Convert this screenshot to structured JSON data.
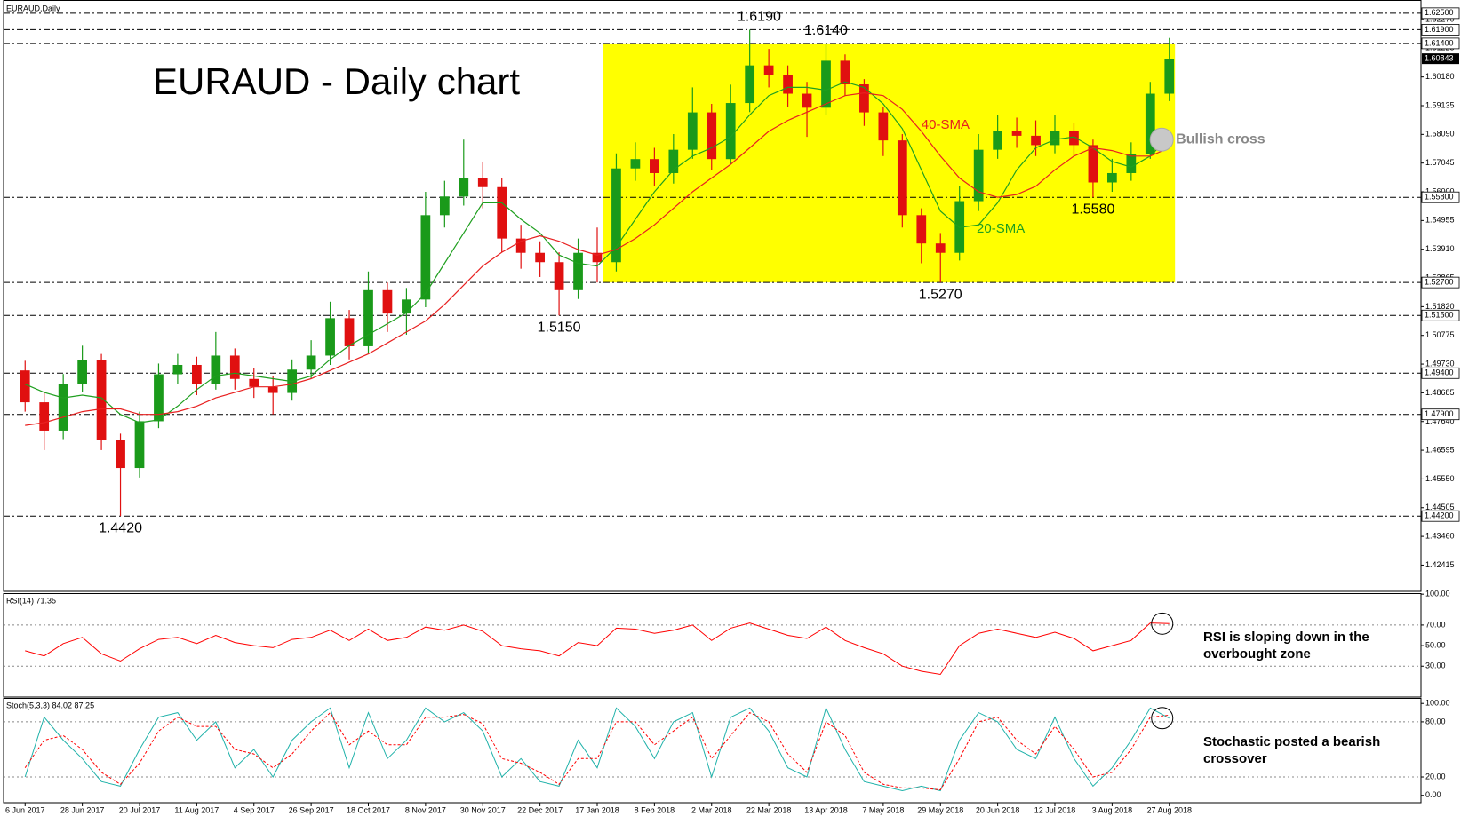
{
  "chart_data": [
    {
      "type": "candlestick",
      "symbol_label": "EURAUD,Daily",
      "title": "EURAUD - Daily chart",
      "x": [
        0,
        1,
        2,
        3,
        4,
        5,
        6,
        7,
        8,
        9,
        10,
        11,
        12,
        13,
        14,
        15,
        16,
        17,
        18,
        19,
        20,
        21,
        22,
        23,
        24,
        25,
        26,
        27,
        28,
        29,
        30,
        31,
        32,
        33,
        34,
        35,
        36,
        37,
        38,
        39,
        40,
        41,
        42,
        43,
        44,
        45,
        46,
        47,
        48,
        49,
        50,
        51,
        52,
        53,
        54,
        55,
        56,
        57,
        58,
        59,
        60
      ],
      "open": [
        1.495,
        1.4834,
        1.4731,
        1.4902,
        1.4987,
        1.4697,
        1.4595,
        1.4765,
        1.4936,
        1.497,
        1.4902,
        1.5004,
        1.4919,
        1.489,
        1.4868,
        1.4953,
        1.5004,
        1.514,
        1.5038,
        1.5242,
        1.5157,
        1.5208,
        1.5515,
        1.5583,
        1.5651,
        1.5617,
        1.543,
        1.5378,
        1.5344,
        1.5242,
        1.5378,
        1.5344,
        1.5685,
        1.5719,
        1.5668,
        1.5753,
        1.5889,
        1.5719,
        1.5923,
        1.606,
        1.6026,
        1.5957,
        1.5906,
        1.6077,
        1.5991,
        1.5889,
        1.5787,
        1.5515,
        1.5412,
        1.5378,
        1.5566,
        1.5753,
        1.5821,
        1.5804,
        1.577,
        1.5821,
        1.577,
        1.5634,
        1.5668,
        1.5736,
        1.5957
      ],
      "high": [
        1.4985,
        1.4869,
        1.4937,
        1.504,
        1.501,
        1.472,
        1.48,
        1.4975,
        1.501,
        1.5,
        1.509,
        1.503,
        1.496,
        1.493,
        1.499,
        1.506,
        1.52,
        1.517,
        1.531,
        1.527,
        1.525,
        1.56,
        1.564,
        1.579,
        1.571,
        1.565,
        1.548,
        1.542,
        1.538,
        1.543,
        1.547,
        1.574,
        1.578,
        1.576,
        1.581,
        1.598,
        1.592,
        1.599,
        1.619,
        1.612,
        1.606,
        1.6,
        1.614,
        1.61,
        1.601,
        1.591,
        1.581,
        1.554,
        1.545,
        1.562,
        1.581,
        1.588,
        1.587,
        1.586,
        1.588,
        1.585,
        1.579,
        1.572,
        1.578,
        1.6,
        1.616
      ],
      "low": [
        1.48,
        1.466,
        1.47,
        1.487,
        1.466,
        1.442,
        1.456,
        1.474,
        1.49,
        1.486,
        1.488,
        1.488,
        1.485,
        1.479,
        1.484,
        1.492,
        1.497,
        1.499,
        1.501,
        1.509,
        1.508,
        1.518,
        1.547,
        1.555,
        1.554,
        1.538,
        1.532,
        1.529,
        1.515,
        1.521,
        1.527,
        1.531,
        1.564,
        1.562,
        1.563,
        1.572,
        1.568,
        1.57,
        1.589,
        1.598,
        1.591,
        1.58,
        1.588,
        1.595,
        1.584,
        1.573,
        1.547,
        1.534,
        1.527,
        1.535,
        1.553,
        1.572,
        1.576,
        1.573,
        1.574,
        1.573,
        1.558,
        1.56,
        1.564,
        1.572,
        1.593
      ],
      "close": [
        1.4834,
        1.4731,
        1.4902,
        1.4987,
        1.4697,
        1.4595,
        1.4765,
        1.4936,
        1.497,
        1.4902,
        1.5004,
        1.4919,
        1.489,
        1.4868,
        1.4953,
        1.5004,
        1.514,
        1.5038,
        1.5242,
        1.5157,
        1.5208,
        1.5515,
        1.5583,
        1.5651,
        1.5617,
        1.543,
        1.5378,
        1.5344,
        1.5242,
        1.5378,
        1.5344,
        1.5685,
        1.5719,
        1.5668,
        1.5753,
        1.5889,
        1.5719,
        1.5923,
        1.606,
        1.6026,
        1.5957,
        1.5906,
        1.6077,
        1.5991,
        1.5889,
        1.5787,
        1.5515,
        1.5412,
        1.5378,
        1.5566,
        1.5753,
        1.5821,
        1.5804,
        1.577,
        1.5821,
        1.577,
        1.5634,
        1.5668,
        1.5736,
        1.5957,
        1.6084
      ],
      "up_color": "#1a9a1a",
      "down_color": "#e01010",
      "overlays": [
        {
          "name": "20-SMA",
          "color": "#1f9f1f",
          "values": [
            1.49,
            1.487,
            1.485,
            1.486,
            1.485,
            1.479,
            1.476,
            1.477,
            1.482,
            1.488,
            1.493,
            1.494,
            1.493,
            1.492,
            1.491,
            1.493,
            1.499,
            1.504,
            1.508,
            1.512,
            1.516,
            1.523,
            1.534,
            1.545,
            1.556,
            1.556,
            1.55,
            1.545,
            1.537,
            1.534,
            1.533,
            1.54,
            1.55,
            1.56,
            1.568,
            1.573,
            1.576,
            1.58,
            1.588,
            1.595,
            1.598,
            1.598,
            1.597,
            1.6,
            1.598,
            1.592,
            1.583,
            1.568,
            1.553,
            1.547,
            1.548,
            1.556,
            1.568,
            1.576,
            1.579,
            1.58,
            1.576,
            1.571,
            1.569,
            1.573,
            1.58
          ]
        },
        {
          "name": "40-SMA",
          "color": "#e82020",
          "values": [
            1.475,
            1.476,
            1.478,
            1.48,
            1.481,
            1.481,
            1.479,
            1.479,
            1.48,
            1.482,
            1.485,
            1.487,
            1.489,
            1.489,
            1.49,
            1.492,
            1.495,
            1.498,
            1.501,
            1.505,
            1.509,
            1.513,
            1.519,
            1.526,
            1.533,
            1.538,
            1.542,
            1.544,
            1.542,
            1.539,
            1.537,
            1.539,
            1.543,
            1.548,
            1.554,
            1.56,
            1.565,
            1.57,
            1.576,
            1.582,
            1.586,
            1.589,
            1.592,
            1.595,
            1.596,
            1.595,
            1.59,
            1.582,
            1.573,
            1.565,
            1.56,
            1.558,
            1.559,
            1.562,
            1.568,
            1.573,
            1.576,
            1.575,
            1.573,
            1.573,
            1.576
          ]
        }
      ],
      "xlim": [
        -1.13,
        73.2
      ],
      "ylim": [
        1.4146,
        1.6298
      ],
      "yticks": [
        {
          "value": 1.6227,
          "label": "1.62270"
        },
        {
          "value": 1.61225,
          "label": "1.61225"
        },
        {
          "value": 1.6018,
          "label": "1.60180"
        },
        {
          "value": 1.59135,
          "label": "1.59135"
        },
        {
          "value": 1.5809,
          "label": "1.58090"
        },
        {
          "value": 1.57045,
          "label": "1.57045"
        },
        {
          "value": 1.56,
          "label": "1.56000"
        },
        {
          "value": 1.54955,
          "label": "1.54955"
        },
        {
          "value": 1.5391,
          "label": "1.53910"
        },
        {
          "value": 1.52865,
          "label": "1.52865"
        },
        {
          "value": 1.5182,
          "label": "1.51820"
        },
        {
          "value": 1.50775,
          "label": "1.50775"
        },
        {
          "value": 1.4973,
          "label": "1.49730"
        },
        {
          "value": 1.48685,
          "label": "1.48685"
        },
        {
          "value": 1.4764,
          "label": "1.47640"
        },
        {
          "value": 1.46595,
          "label": "1.46595"
        },
        {
          "value": 1.4555,
          "label": "1.45550"
        },
        {
          "value": 1.44505,
          "label": "1.44505"
        },
        {
          "value": 1.4346,
          "label": "1.43460"
        },
        {
          "value": 1.42415,
          "label": "1.42415"
        }
      ],
      "xticks": [
        {
          "value": 0,
          "label": "6 Jun 2017"
        },
        {
          "value": 3,
          "label": "28 Jun 2017"
        },
        {
          "value": 6,
          "label": "20 Jul 2017"
        },
        {
          "value": 9,
          "label": "11 Aug 2017"
        },
        {
          "value": 12,
          "label": "4 Sep 2017"
        },
        {
          "value": 15,
          "label": "26 Sep 2017"
        },
        {
          "value": 18,
          "label": "18 Oct 2017"
        },
        {
          "value": 21,
          "label": "8 Nov 2017"
        },
        {
          "value": 24,
          "label": "30 Nov 2017"
        },
        {
          "value": 27,
          "label": "22 Dec 2017"
        },
        {
          "value": 30,
          "label": "17 Jan 2018"
        },
        {
          "value": 33,
          "label": "8 Feb 2018"
        },
        {
          "value": 36,
          "label": "2 Mar 2018"
        },
        {
          "value": 39,
          "label": "22 Mar 2018"
        },
        {
          "value": 42,
          "label": "13 Apr 2018"
        },
        {
          "value": 45,
          "label": "7 May 2018"
        },
        {
          "value": 48,
          "label": "29 May 2018"
        },
        {
          "value": 51,
          "label": "20 Jun 2018"
        },
        {
          "value": 54,
          "label": "12 Jul 2018"
        },
        {
          "value": 57,
          "label": "3 Aug 2018"
        },
        {
          "value": 60,
          "label": "27 Aug 2018"
        }
      ],
      "levels": [
        {
          "value": 1.625,
          "label": "1.62500"
        },
        {
          "value": 1.619,
          "label": "1.61900"
        },
        {
          "value": 1.614,
          "label": "1.61400"
        },
        {
          "value": 1.558,
          "label": "1.55800"
        },
        {
          "value": 1.527,
          "label": "1.52700"
        },
        {
          "value": 1.515,
          "label": "1.51500"
        },
        {
          "value": 1.494,
          "label": "1.49400"
        },
        {
          "value": 1.479,
          "label": "1.47900"
        },
        {
          "value": 1.442,
          "label": "1.44200"
        }
      ],
      "last_price": {
        "value": 1.60843,
        "label": "1.60843"
      },
      "range_box": {
        "x": [
          30.3,
          60.3
        ],
        "y": [
          1.527,
          1.614
        ],
        "color": "#ffff00"
      },
      "swing_points": {
        "x": [
          5,
          28,
          38.5,
          42,
          48,
          56
        ],
        "values": [
          1.442,
          1.515,
          1.619,
          1.614,
          1.527,
          1.558
        ],
        "value_labels": [
          "1.4420",
          "1.5150",
          "1.6190",
          "1.6140",
          "1.5270",
          "1.5580"
        ]
      },
      "annotations": [
        {
          "text": "40-SMA",
          "x": 47,
          "y": 1.5842,
          "color": "#e82020",
          "circle": false
        },
        {
          "text": "20-SMA",
          "x": 49.9,
          "y": 1.5464,
          "color": "#1f9f1f",
          "circle": false
        },
        {
          "text": "Bullish cross",
          "x": 59.6,
          "y": 1.579,
          "color": "#888888",
          "circle": true
        }
      ]
    },
    {
      "type": "line",
      "title": "RSI(14) 71.35",
      "series": [
        {
          "color": "#ff0000",
          "dashed": false,
          "values": [
            45,
            40,
            52,
            58,
            42,
            35,
            47,
            56,
            58,
            52,
            60,
            53,
            50,
            48,
            56,
            58,
            65,
            55,
            66,
            55,
            58,
            68,
            65,
            70,
            64,
            50,
            47,
            45,
            40,
            53,
            50,
            67,
            66,
            62,
            65,
            70,
            55,
            67,
            72,
            66,
            60,
            57,
            68,
            55,
            48,
            42,
            30,
            25,
            22,
            50,
            62,
            66,
            62,
            58,
            63,
            57,
            45,
            50,
            55,
            72,
            71.35
          ]
        }
      ],
      "ylim": [
        0,
        101
      ],
      "yticks": [
        {
          "value": 100,
          "label": "100.00"
        },
        {
          "value": 70,
          "label": "70.00"
        },
        {
          "value": 50,
          "label": "50.00"
        },
        {
          "value": 30,
          "label": "30.00"
        }
      ],
      "dotted_levels": [
        70,
        30
      ],
      "note": [
        "RSI is sloping down in the",
        "overbought zone"
      ],
      "circle_last": true
    },
    {
      "type": "line",
      "title": "Stoch(5,3,3) 84.02 87.25",
      "series": [
        {
          "color": "#20b2aa",
          "dashed": false,
          "values": [
            20,
            85,
            60,
            40,
            15,
            10,
            50,
            85,
            90,
            60,
            80,
            30,
            50,
            20,
            60,
            80,
            95,
            30,
            90,
            40,
            60,
            95,
            80,
            90,
            70,
            20,
            40,
            15,
            10,
            60,
            30,
            95,
            75,
            40,
            80,
            90,
            20,
            85,
            95,
            70,
            30,
            20,
            95,
            50,
            15,
            10,
            5,
            10,
            5,
            60,
            90,
            80,
            50,
            40,
            85,
            40,
            10,
            30,
            60,
            95,
            84.02
          ]
        },
        {
          "color": "#ff0000",
          "dashed": true,
          "values": [
            30,
            60,
            65,
            50,
            25,
            12,
            35,
            70,
            85,
            75,
            75,
            50,
            45,
            30,
            45,
            70,
            90,
            55,
            70,
            55,
            55,
            85,
            85,
            88,
            78,
            40,
            35,
            25,
            12,
            40,
            40,
            80,
            80,
            55,
            70,
            85,
            40,
            65,
            90,
            80,
            45,
            25,
            80,
            65,
            25,
            12,
            8,
            8,
            6,
            40,
            80,
            85,
            60,
            45,
            75,
            50,
            20,
            25,
            50,
            85,
            87.25
          ]
        }
      ],
      "ylim": [
        -8,
        106
      ],
      "yticks": [
        {
          "value": 100,
          "label": "100.00"
        },
        {
          "value": 80,
          "label": "80.00"
        },
        {
          "value": 20,
          "label": "20.00"
        },
        {
          "value": 0,
          "label": "0.00"
        }
      ],
      "dotted_levels": [
        80,
        20
      ],
      "note": [
        "Stochastic posted a bearish",
        "crossover"
      ],
      "circle_last": true
    }
  ]
}
